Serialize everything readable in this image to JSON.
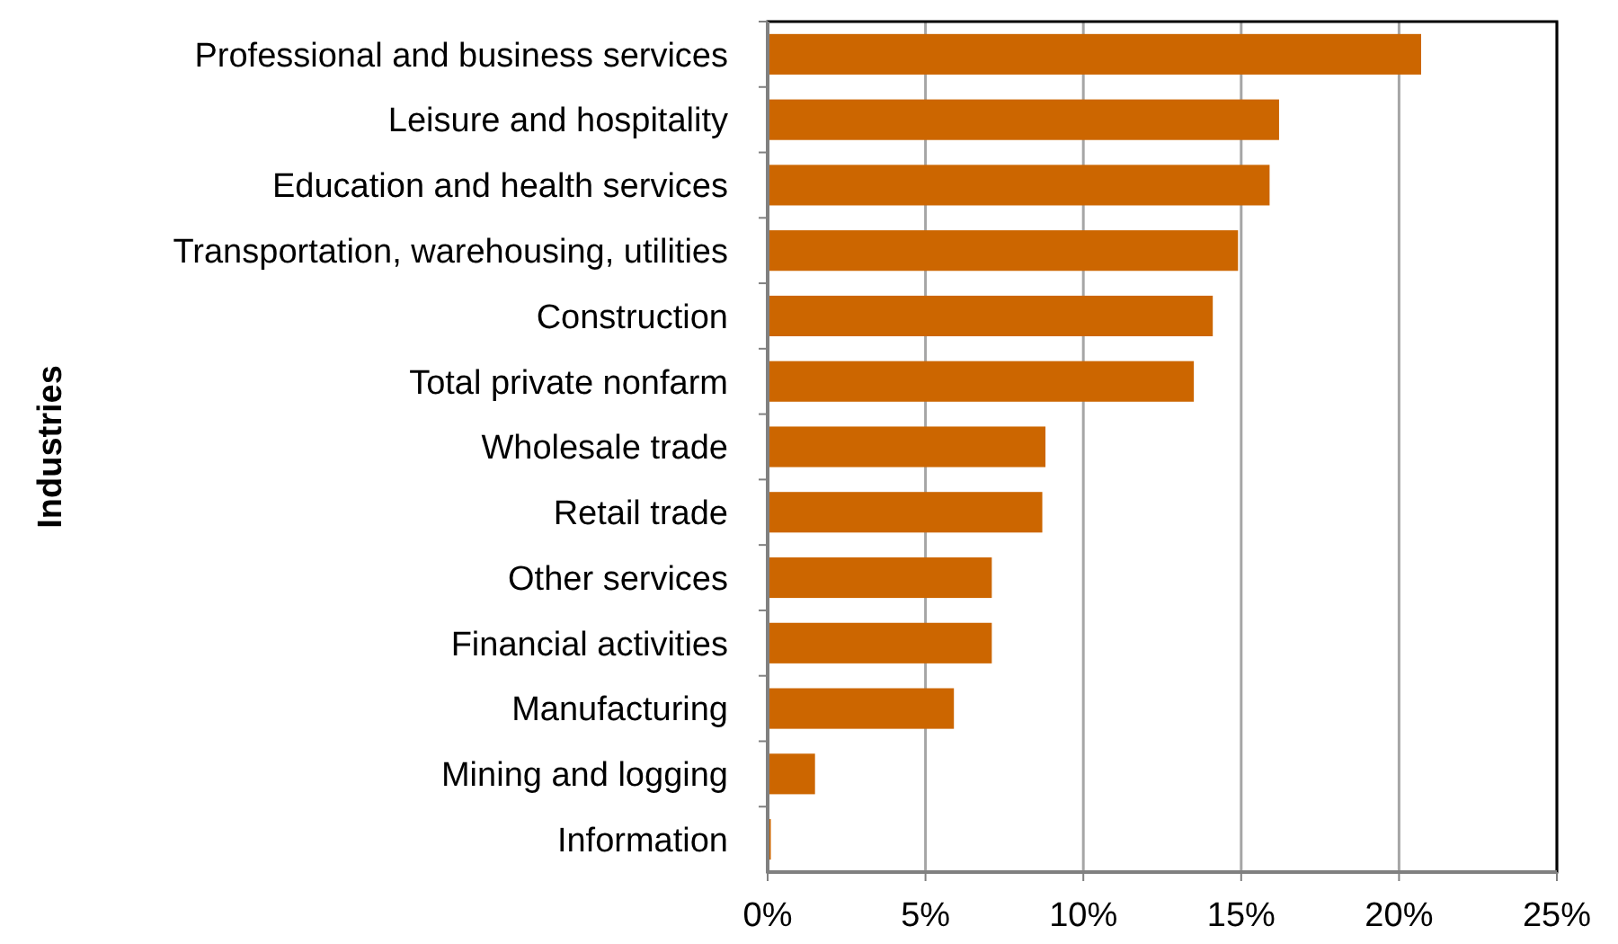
{
  "chart_data": {
    "type": "bar",
    "orientation": "horizontal",
    "ylabel": "Industries",
    "categories": [
      "Professional and business services",
      "Leisure and hospitality",
      "Education and health services",
      "Transportation, warehousing, utilities",
      "Construction",
      "Total private nonfarm",
      "Wholesale trade",
      "Retail trade",
      "Other services",
      "Financial activities",
      "Manufacturing",
      "Mining and logging",
      "Information"
    ],
    "values": [
      20.7,
      16.2,
      15.9,
      14.9,
      14.1,
      13.5,
      8.8,
      8.7,
      7.1,
      7.1,
      5.9,
      1.5,
      0.1
    ],
    "color": "#cc6600",
    "xlim": [
      0,
      25
    ],
    "xticks": [
      {
        "value": 0,
        "label": "0%"
      },
      {
        "value": 5,
        "label": "5%"
      },
      {
        "value": 10,
        "label": "10%"
      },
      {
        "value": 15,
        "label": "15%"
      },
      {
        "value": 20,
        "label": "20%"
      },
      {
        "value": 25,
        "label": "25%"
      }
    ],
    "grid": "x"
  }
}
